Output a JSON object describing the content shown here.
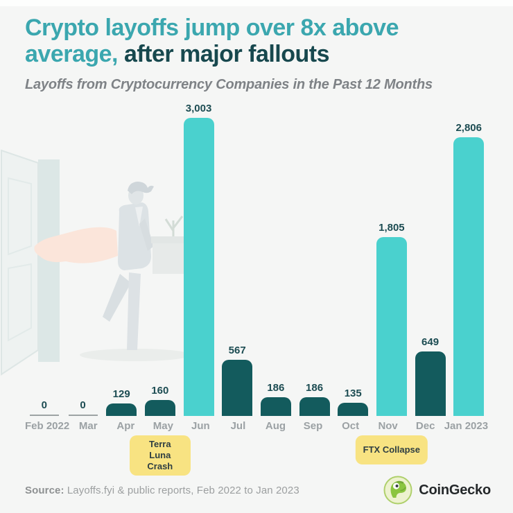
{
  "header": {
    "title_line1": "Crypto layoffs jump over 8x above",
    "title_line2_highlight": "average,",
    "title_line2_rest": " after major fallouts",
    "subtitle": "Layoffs from Cryptocurrency Companies in the Past 12 Months"
  },
  "chart_data": {
    "type": "bar",
    "title": "Layoffs from Cryptocurrency Companies in the Past 12 Months",
    "categories": [
      "Feb 2022",
      "Mar",
      "Apr",
      "May",
      "Jun",
      "Jul",
      "Aug",
      "Sep",
      "Oct",
      "Nov",
      "Dec",
      "Jan 2023"
    ],
    "values": [
      0,
      0,
      129,
      160,
      3003,
      567,
      186,
      186,
      135,
      1805,
      649,
      2806
    ],
    "display_values": [
      "0",
      "0",
      "129",
      "160",
      "3,003",
      "567",
      "186",
      "186",
      "135",
      "1,805",
      "649",
      "2,806"
    ],
    "bar_styles": [
      "zero",
      "zero",
      "dark",
      "dark",
      "light",
      "dark",
      "dark",
      "dark",
      "dark",
      "light",
      "dark",
      "light"
    ],
    "xlabel": "",
    "ylabel": "",
    "ylim": [
      0,
      3003
    ],
    "grid": false,
    "legend": false,
    "annotations": [
      {
        "label": "Terra Luna Crash",
        "target_category": "May",
        "target_index": 3,
        "wrap": true
      },
      {
        "label": "FTX Collapse",
        "target_category": "Nov",
        "target_index": 9,
        "wrap": false
      }
    ]
  },
  "colors": {
    "background": "#F5F6F5",
    "title_highlight": "#3BA7AF",
    "title_dark": "#17484E",
    "subtitle": "#7E8286",
    "bar_light": "#4AD1CE",
    "bar_dark": "#135B5D",
    "bar_zero_line": "#9DA3A4",
    "value_label": "#1C4C52",
    "month_label": "#9BA1A4",
    "annotation_bg": "#F8E382",
    "annotation_text": "#2E3E42",
    "gecko_green": "#8BC53F"
  },
  "footer": {
    "source_label": "Source:",
    "source_text": " Layoffs.fyi & public reports, Feb 2022 to Jan 2023",
    "brand_name": "CoinGecko"
  }
}
